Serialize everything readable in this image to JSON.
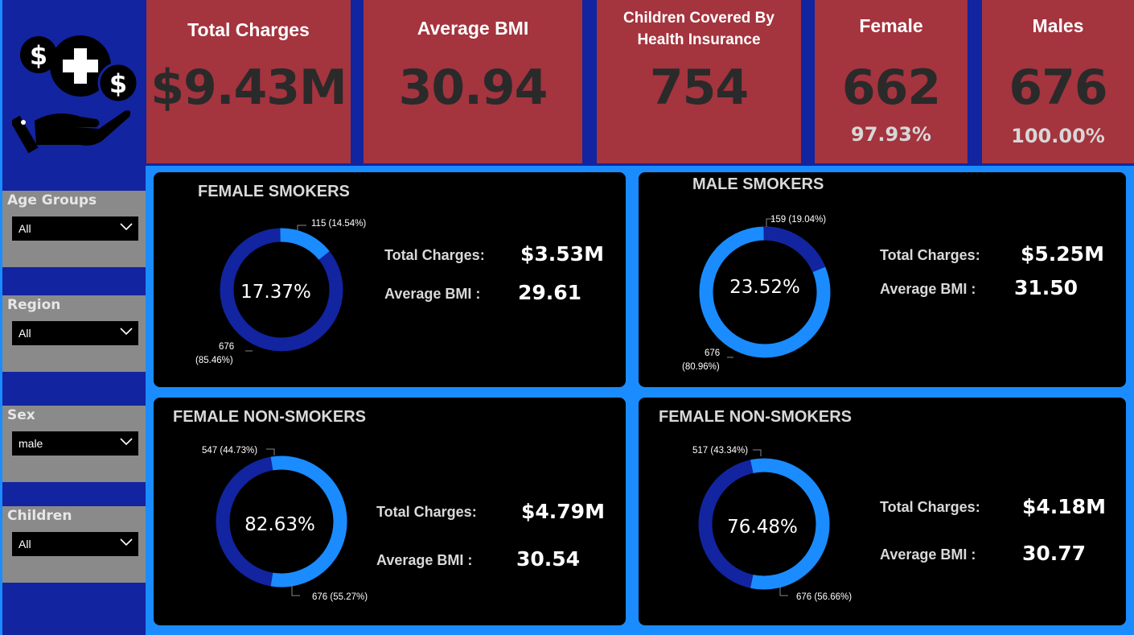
{
  "sidebar": {
    "logo_icon": "health-insurance-hand-icon",
    "filters": [
      {
        "label": "Age Groups",
        "value": "All"
      },
      {
        "label": "Region",
        "value": "All"
      },
      {
        "label": "Sex",
        "value": "male"
      },
      {
        "label": "Children",
        "value": "All"
      }
    ]
  },
  "kpis": {
    "total_charges": {
      "title": "Total Charges",
      "value": "$9.43M"
    },
    "average_bmi": {
      "title": "Average BMI",
      "value": "30.94"
    },
    "children": {
      "title_line1": "Children Covered By",
      "title_line2": "Health Insurance",
      "value": "754"
    },
    "female": {
      "title": "Female",
      "value": "662",
      "pct": "97.93%"
    },
    "males": {
      "title": "Males",
      "value": "676",
      "pct": "100.00%"
    }
  },
  "colors": {
    "dark_blue": "#1224a0",
    "light_blue": "#1a8cff",
    "kpi_red": "#a4343e"
  },
  "panels": [
    {
      "title": "FEMALE SMOKERS",
      "center": "17.37%",
      "fraction": 0.1454,
      "label_small": "115 (14.54%)",
      "label_large_1": "676",
      "label_large_2": "(85.46%)",
      "charges_label": "Total Charges:",
      "charges_value": "$3.53M",
      "bmi_label": "Average BMI :",
      "bmi_value": "29.61"
    },
    {
      "title": "MALE SMOKERS",
      "center": "23.52%",
      "fraction": 0.1904,
      "label_small": "159 (19.04%)",
      "label_large_1": "676",
      "label_large_2": "(80.96%)",
      "charges_label": "Total Charges:",
      "charges_value": "$5.25M",
      "bmi_label": "Average BMI :",
      "bmi_value": "31.50"
    },
    {
      "title": "FEMALE NON-SMOKERS",
      "center": "82.63%",
      "fraction": 0.5527,
      "label_small": "547 (44.73%)",
      "label_large_1": "676 (55.27%)",
      "charges_label": "Total Charges:",
      "charges_value": "$4.79M",
      "bmi_label": "Average BMI :",
      "bmi_value": "30.54"
    },
    {
      "title": "FEMALE NON-SMOKERS",
      "center": "76.48%",
      "fraction": 0.5666,
      "label_small": "517 (43.34%)",
      "label_large_1": "676 (56.66%)",
      "charges_label": "Total Charges:",
      "charges_value": "$4.18M",
      "bmi_label": "Average BMI :",
      "bmi_value": "30.77"
    }
  ]
}
